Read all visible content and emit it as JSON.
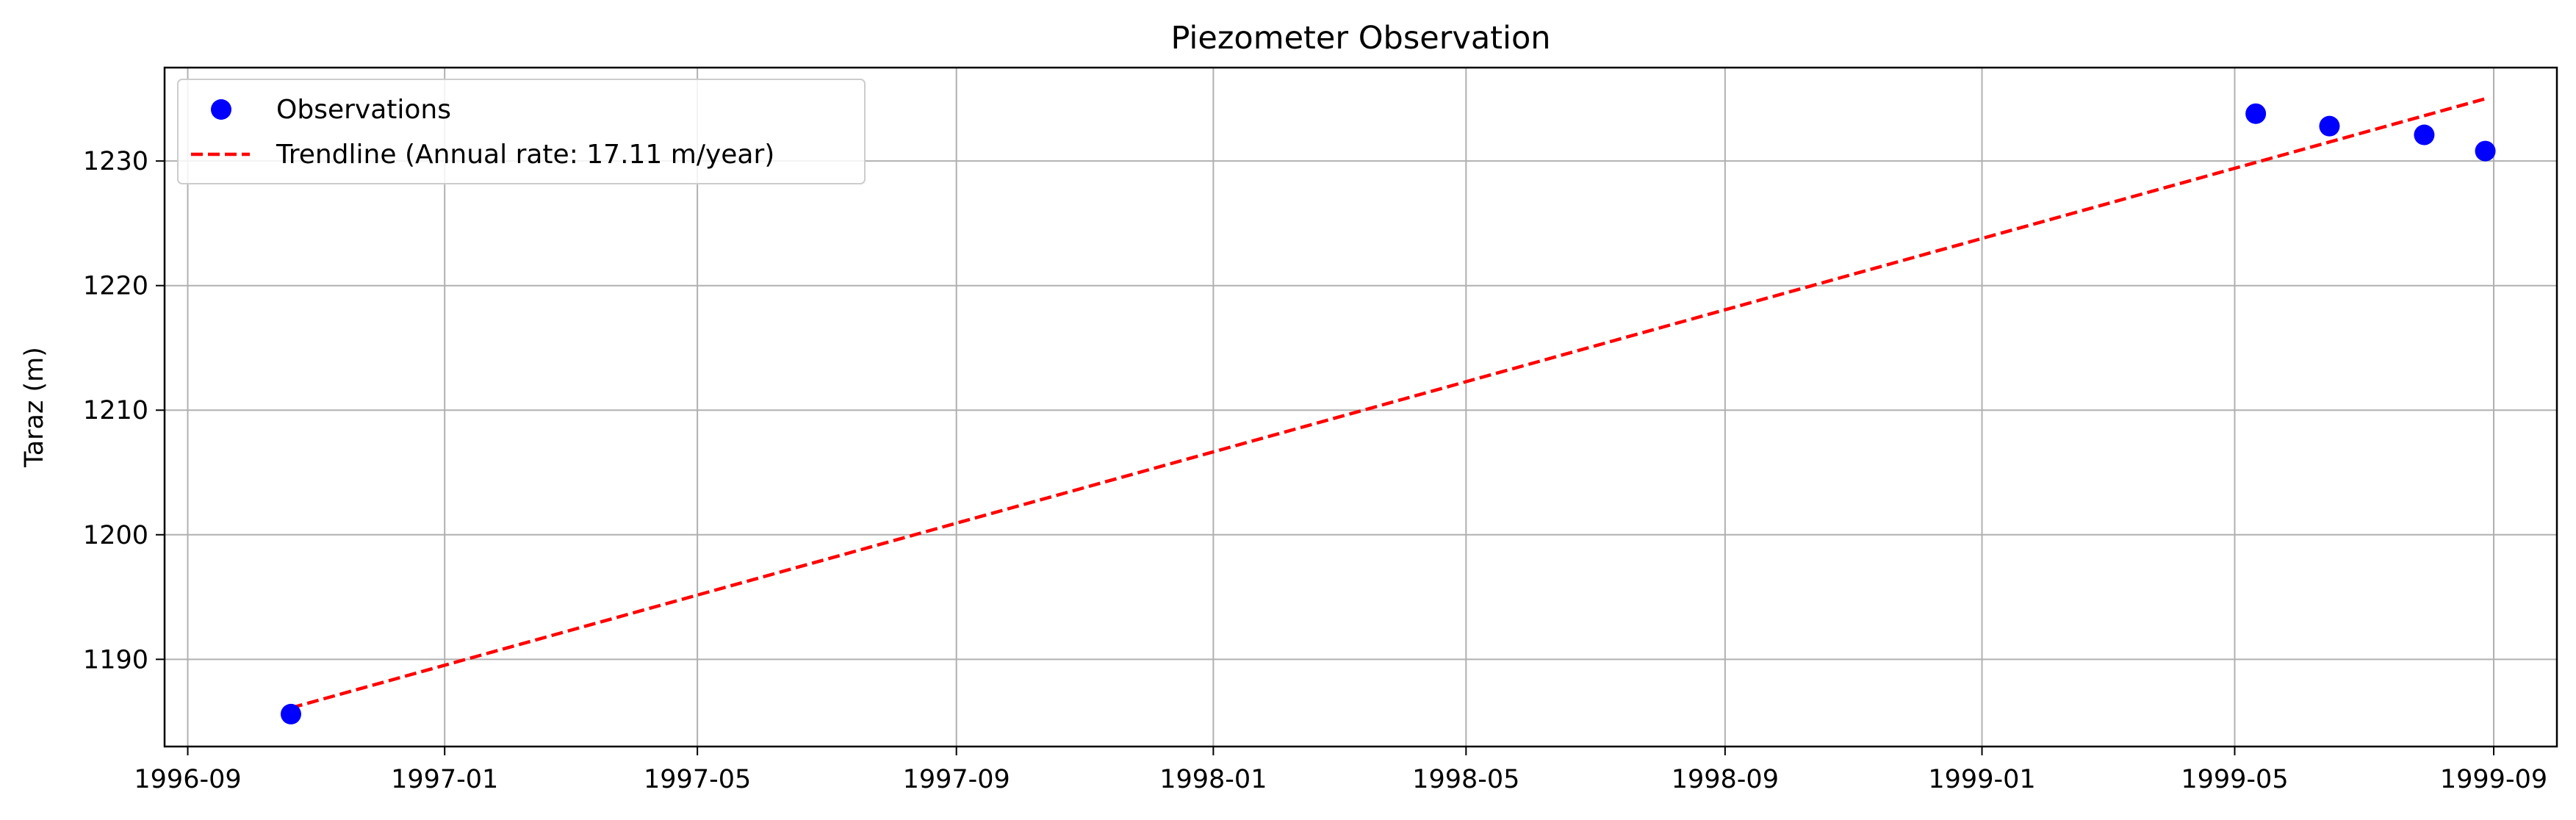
{
  "chart_data": {
    "type": "scatter",
    "title": "Piezometer Observation",
    "xlabel": "",
    "ylabel": "Taraz (m)",
    "x_axis_type": "date",
    "xlim": [
      "1996-08-21",
      "1999-10-01"
    ],
    "ylim": [
      1183,
      1237.5
    ],
    "grid": true,
    "legend_position": "top-left",
    "xticks": [
      "1996-09",
      "1997-01",
      "1997-05",
      "1997-09",
      "1998-01",
      "1998-05",
      "1998-09",
      "1999-01",
      "1999-05",
      "1999-09"
    ],
    "yticks": [
      1190,
      1200,
      1210,
      1220,
      1230
    ],
    "series": [
      {
        "name": "Observations",
        "kind": "scatter",
        "color": "#0000ff",
        "x": [
          "1996-10-20",
          "1999-05-11",
          "1999-06-15",
          "1999-07-30",
          "1999-08-28"
        ],
        "y": [
          1185.6,
          1233.8,
          1232.8,
          1232.1,
          1230.8
        ]
      },
      {
        "name": "Trendline (Annual rate: 17.11 m/year)",
        "kind": "line",
        "style": "dashed",
        "color": "#ff0000",
        "x": [
          "1996-10-20",
          "1999-08-28"
        ],
        "y": [
          1186.1,
          1235.0
        ]
      }
    ]
  }
}
